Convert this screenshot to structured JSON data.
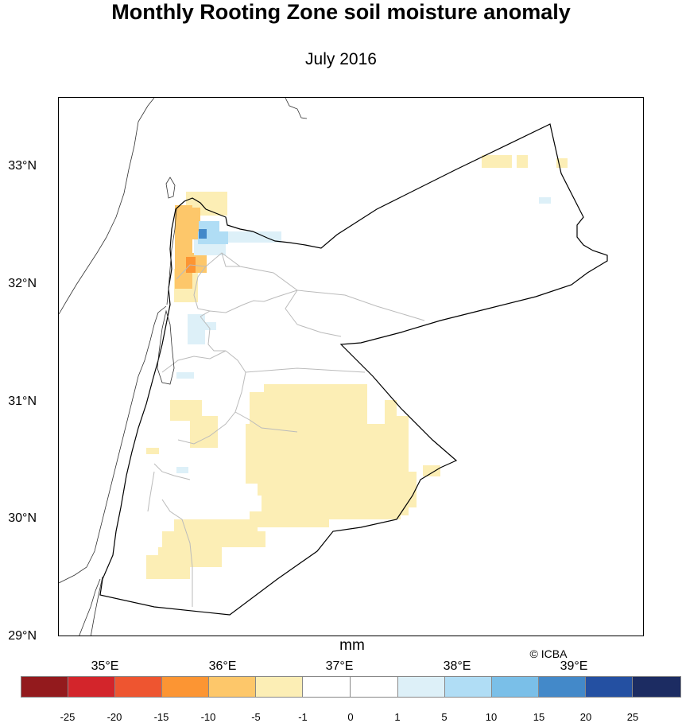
{
  "header": {
    "title": "Monthly Rooting Zone soil moisture anomaly",
    "subtitle": "July 2016"
  },
  "map": {
    "lat_labels": [
      "33°N",
      "32°N",
      "31°N",
      "30°N",
      "29°N"
    ],
    "lon_labels": [
      "35°E",
      "36°E",
      "37°E",
      "38°E",
      "39°E"
    ],
    "units": "mm",
    "credit": "© ICBA"
  },
  "legend": {
    "labels": [
      "-25",
      "-20",
      "-15",
      "-10",
      "-5",
      "-1",
      "0",
      "1",
      "5",
      "10",
      "15",
      "20",
      "25"
    ],
    "colors": [
      "#931A1D",
      "#D3252B",
      "#EE5530",
      "#FC9533",
      "#FDC76A",
      "#FCEEB5",
      "#FFFFFF",
      "#FFFFFF",
      "#DDF0F8",
      "#B0DDF5",
      "#7ABFE8",
      "#4389C9",
      "#2450A2",
      "#1C2C62"
    ],
    "anomaly_colors": {
      "light_yellow": "#FCEEB5",
      "yellow": "#FDC76A",
      "orange": "#FC9533",
      "light_blue": "#DDF0F8",
      "blue": "#7ABFE8",
      "dark_blue": "#4389C9"
    }
  }
}
